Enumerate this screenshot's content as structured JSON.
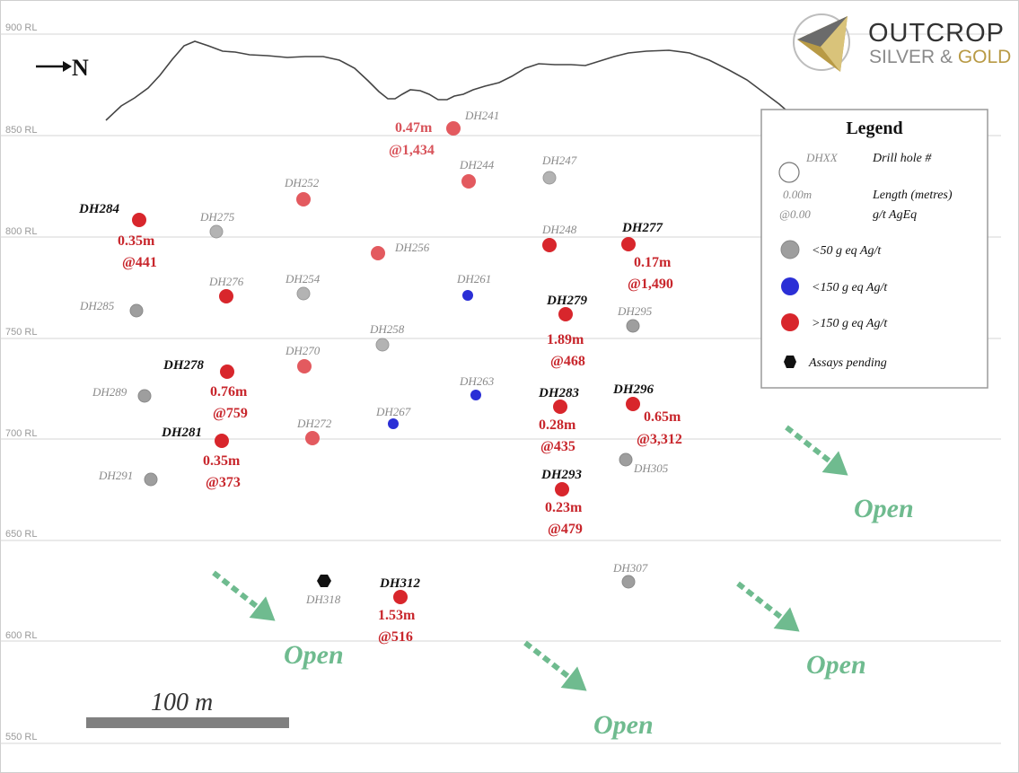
{
  "elevation_labels": [
    "900 RL",
    "850 RL",
    "800 RL",
    "750 RL",
    "700 RL",
    "650 RL",
    "600 RL",
    "550 RL"
  ],
  "north_label": "N",
  "logo": {
    "line1": "OUTCROP",
    "line2_a": "SILVER & ",
    "line2_b": "GOLD"
  },
  "scale_bar": {
    "label": "100 m"
  },
  "open_label": "Open",
  "legend": {
    "title": "Legend",
    "hole_sample": "DHXX",
    "hole_desc": "Drill hole #",
    "length_sample": "0.00m",
    "length_desc": "Length (metres)",
    "grade_sample": "@0.00",
    "grade_desc": "g/t AgEq",
    "low_desc": "<50 g eq Ag/t",
    "mid_desc": "<150 g eq Ag/t",
    "high_desc": ">150 g eq Ag/t",
    "pending_desc": "Assays pending"
  },
  "colors": {
    "grey_hole": "#9e9e9e",
    "blue_hole": "#2b2fd6",
    "red_hole": "#d8262c",
    "red_light_hole": "#e35a5f",
    "open_arrow": "#6fbb8f",
    "topo_line": "#444444"
  },
  "drill_holes": [
    {
      "id": "DH241",
      "grade_class": ">150",
      "length": "0.47m",
      "grade": "@1,434"
    },
    {
      "id": "DH244",
      "grade_class": ">150"
    },
    {
      "id": "DH247",
      "grade_class": "<50"
    },
    {
      "id": "DH252",
      "grade_class": ">150"
    },
    {
      "id": "DH275",
      "grade_class": "<50"
    },
    {
      "id": "DH284",
      "grade_class": ">150",
      "length": "0.35m",
      "grade": "@441"
    },
    {
      "id": "DH256",
      "grade_class": ">150"
    },
    {
      "id": "DH248",
      "grade_class": ">150"
    },
    {
      "id": "DH277",
      "grade_class": ">150",
      "length": "0.17m",
      "grade": "@1,490"
    },
    {
      "id": "DH276",
      "grade_class": ">150"
    },
    {
      "id": "DH254",
      "grade_class": "<50"
    },
    {
      "id": "DH261",
      "grade_class": "<150"
    },
    {
      "id": "DH285",
      "grade_class": "<50"
    },
    {
      "id": "DH279",
      "grade_class": ">150",
      "length": "1.89m",
      "grade": "@468"
    },
    {
      "id": "DH295",
      "grade_class": "<50"
    },
    {
      "id": "DH258",
      "grade_class": "<50"
    },
    {
      "id": "DH270",
      "grade_class": ">150"
    },
    {
      "id": "DH278",
      "grade_class": ">150",
      "length": "0.76m",
      "grade": "@759"
    },
    {
      "id": "DH263",
      "grade_class": "<150"
    },
    {
      "id": "DH289",
      "grade_class": "<50"
    },
    {
      "id": "DH283",
      "grade_class": ">150",
      "length": "0.28m",
      "grade": "@435"
    },
    {
      "id": "DH296",
      "grade_class": ">150",
      "length": "0.65m",
      "grade": "@3,312"
    },
    {
      "id": "DH267",
      "grade_class": "<150"
    },
    {
      "id": "DH272",
      "grade_class": ">150"
    },
    {
      "id": "DH281",
      "grade_class": ">150",
      "length": "0.35m",
      "grade": "@373"
    },
    {
      "id": "DH305",
      "grade_class": "<50"
    },
    {
      "id": "DH291",
      "grade_class": "<50"
    },
    {
      "id": "DH293",
      "grade_class": ">150",
      "length": "0.23m",
      "grade": "@479"
    },
    {
      "id": "DH318",
      "grade_class": "pending"
    },
    {
      "id": "DH312",
      "grade_class": ">150",
      "length": "1.53m",
      "grade": "@516"
    },
    {
      "id": "DH307",
      "grade_class": "<50"
    }
  ]
}
